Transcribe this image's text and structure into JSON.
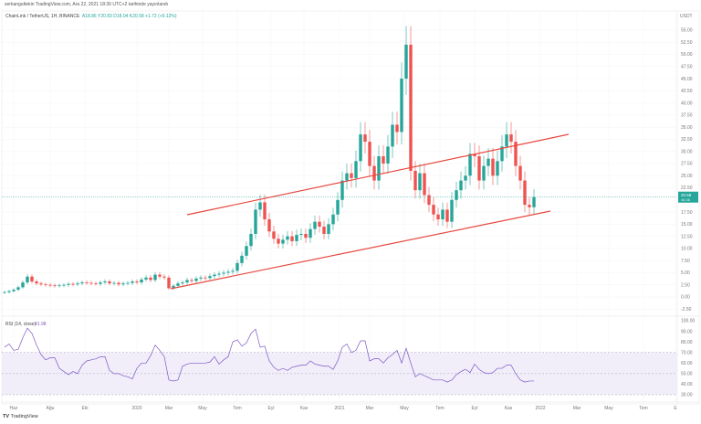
{
  "header": {
    "published": "serkanguttekin TradingView.com, Ara 22, 2021 18:30 UTC+2 tarihinde yayınlandı"
  },
  "legend": {
    "symbol": "ChainLink / TetherUS, 1H, BINANCE",
    "open": "A18.86",
    "high": "Y20.83",
    "low": "D18.04",
    "close": "K20.58",
    "change": "+1.72 (+9.12%)"
  },
  "price_axis": {
    "currency": "USDT",
    "last_price": "20.58",
    "last_countdown": "46:38"
  },
  "rsi_legend": {
    "label": "RSI (14, close)",
    "value": "41.98"
  },
  "footer": {
    "logo_text": "TradingView"
  },
  "colors": {
    "up": "#26a69a",
    "down": "#ef5350",
    "rsi": "#7e57c2",
    "channel": "#e8483f"
  },
  "chart_data": [
    {
      "type": "candlestick",
      "title": "ChainLink / TetherUS",
      "ylabel": "USDT",
      "ylim": [
        -3.5,
        57.5
      ],
      "yticks": [
        55,
        52.5,
        50,
        47.5,
        45,
        42.5,
        40,
        37.5,
        35,
        32.5,
        30,
        27.5,
        25,
        22.5,
        17.5,
        15,
        12.5,
        10,
        7.5,
        5,
        2.5,
        0,
        -2.5
      ],
      "xticks": [
        "Haz",
        "Ağu",
        "Eki",
        "2020",
        "Mar",
        "May",
        "Tem",
        "Eyl",
        "Kas",
        "2021",
        "Mar",
        "May",
        "Tem",
        "Eyl",
        "Kas",
        "2022",
        "Mar",
        "May",
        "Tem",
        "E"
      ],
      "closes": [
        1.0,
        1.2,
        1.5,
        2.0,
        3.0,
        4.2,
        3.2,
        2.8,
        2.6,
        2.5,
        2.4,
        2.3,
        2.4,
        2.5,
        2.7,
        2.6,
        2.8,
        3.0,
        2.9,
        2.8,
        2.7,
        3.0,
        3.2,
        2.8,
        2.9,
        2.6,
        2.8,
        2.9,
        3.2,
        3.0,
        3.6,
        4.0,
        3.5,
        4.6,
        4.2,
        4.0,
        1.8,
        2.3,
        2.8,
        3.0,
        3.5,
        3.3,
        3.8,
        4.0,
        3.9,
        4.3,
        4.6,
        4.8,
        5.0,
        5.2,
        5.4,
        7.0,
        8.5,
        10.5,
        13.0,
        18.0,
        19.5,
        16.0,
        13.5,
        12.0,
        11.0,
        11.8,
        12.5,
        11.5,
        12.8,
        13.0,
        12.2,
        14.0,
        15.5,
        14.5,
        13.0,
        15.0,
        17.0,
        20.0,
        24.0,
        25.5,
        24.5,
        28.0,
        33.5,
        32.0,
        27.0,
        24.0,
        29.0,
        27.5,
        31.0,
        35.5,
        34.0,
        45.0,
        52.0,
        26.0,
        22.0,
        25.5,
        21.0,
        19.0,
        17.0,
        16.0,
        18.0,
        15.5,
        20.0,
        22.0,
        24.0,
        25.0,
        29.5,
        29.0,
        24.0,
        27.0,
        28.5,
        25.0,
        28.0,
        31.0,
        33.5,
        32.0,
        27.0,
        24.0,
        19.0,
        18.5,
        20.58
      ],
      "last": 20.58
    },
    {
      "type": "line",
      "title": "RSI (14, close)",
      "ylim": [
        30,
        100
      ],
      "yticks": [
        100,
        90,
        80,
        70,
        60,
        50,
        40,
        30
      ],
      "bands": [
        30,
        50,
        70
      ],
      "values": [
        75,
        78,
        72,
        73,
        84,
        93,
        88,
        77,
        68,
        63,
        65,
        65,
        55,
        52,
        49,
        52,
        50,
        58,
        62,
        63,
        64,
        66,
        66,
        53,
        50,
        50,
        48,
        47,
        45,
        55,
        60,
        60,
        67,
        77,
        72,
        66,
        44,
        43,
        44,
        57,
        59,
        60,
        60,
        60,
        60,
        61,
        66,
        59,
        63,
        66,
        80,
        82,
        76,
        79,
        88,
        92,
        75,
        76,
        62,
        56,
        53,
        55,
        53,
        56,
        57,
        58,
        58,
        62,
        59,
        58,
        57,
        57,
        54,
        62,
        75,
        78,
        70,
        72,
        81,
        81,
        62,
        64,
        64,
        60,
        65,
        68,
        72,
        60,
        74,
        60,
        47,
        50,
        48,
        46,
        44,
        44,
        44,
        42,
        44,
        49,
        52,
        54,
        51,
        59,
        54,
        51,
        50,
        51,
        55,
        55,
        58,
        58,
        50,
        44,
        42,
        43,
        43
      ]
    }
  ]
}
